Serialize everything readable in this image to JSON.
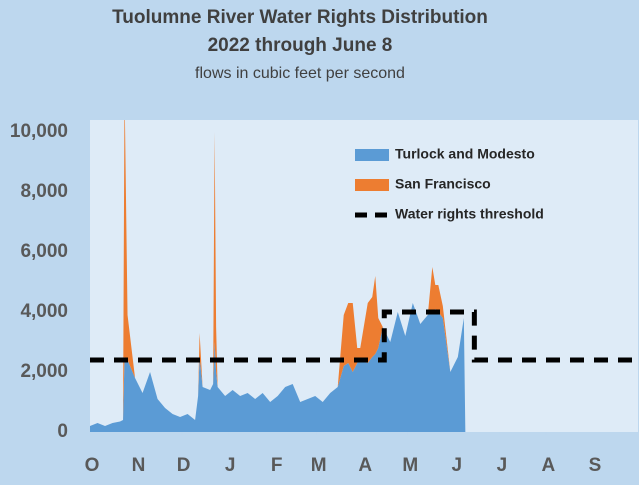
{
  "chart_data": {
    "type": "area",
    "title": [
      "Tuolumne River Water Rights Distribution",
      "2022 through June 8"
    ],
    "subtitle": "flows in cubic feet per second",
    "x": [
      0,
      5,
      10,
      15,
      20,
      22,
      23,
      25,
      30,
      35,
      40,
      45,
      50,
      55,
      60,
      65,
      70,
      72,
      73,
      75,
      80,
      82,
      83,
      84,
      85,
      90,
      95,
      100,
      105,
      110,
      115,
      120,
      125,
      130,
      135,
      140,
      145,
      150,
      155,
      160,
      165,
      169,
      172,
      175,
      178,
      180,
      185,
      188,
      190,
      192,
      195,
      200,
      205,
      210,
      215,
      220,
      225,
      228,
      230,
      232,
      235,
      240,
      245,
      249,
      250
    ],
    "series": [
      {
        "name": "Turlock and Modesto",
        "color": "#5b9bd5",
        "stacked": true,
        "values": [
          200,
          300,
          200,
          300,
          350,
          400,
          2500,
          2400,
          1800,
          1300,
          2000,
          1100,
          800,
          600,
          500,
          600,
          400,
          1200,
          2500,
          1500,
          1400,
          1600,
          3000,
          2000,
          1500,
          1200,
          1400,
          1200,
          1300,
          1100,
          1300,
          1000,
          1200,
          1500,
          1600,
          1000,
          1100,
          1200,
          1000,
          1300,
          1500,
          2200,
          2300,
          2000,
          2300,
          2400,
          2300,
          2500,
          2600,
          2800,
          3500,
          3000,
          4000,
          3200,
          4300,
          3600,
          3900,
          4000,
          4100,
          4000,
          3800,
          2000,
          2500,
          3800,
          0
        ]
      },
      {
        "name": "San Francisco",
        "color": "#ed7d31",
        "stacked": true,
        "values": [
          0,
          0,
          0,
          0,
          0,
          0,
          9000,
          1500,
          0,
          0,
          0,
          0,
          0,
          0,
          0,
          0,
          0,
          0,
          800,
          0,
          0,
          0,
          7000,
          1500,
          0,
          0,
          0,
          0,
          0,
          0,
          0,
          0,
          0,
          0,
          0,
          0,
          0,
          0,
          0,
          0,
          0,
          1700,
          2000,
          2300,
          500,
          400,
          2000,
          2000,
          2600,
          1000,
          0,
          0,
          0,
          0,
          0,
          0,
          0,
          1500,
          800,
          900,
          400,
          0,
          0,
          0,
          0
        ]
      },
      {
        "name": "Water rights threshold",
        "color": "#000000",
        "line": "dashed",
        "x": [
          0,
          196,
          196,
          256,
          256,
          365
        ],
        "values": [
          2400,
          2400,
          4000,
          4000,
          2400,
          2400
        ]
      }
    ],
    "xlim": [
      0,
      365
    ],
    "xticks": [
      {
        "value": 0,
        "label": "O"
      },
      {
        "value": 31,
        "label": "N"
      },
      {
        "value": 61,
        "label": "D"
      },
      {
        "value": 92,
        "label": "J"
      },
      {
        "value": 123,
        "label": "F"
      },
      {
        "value": 151,
        "label": "M"
      },
      {
        "value": 182,
        "label": "A"
      },
      {
        "value": 212,
        "label": "M"
      },
      {
        "value": 243,
        "label": "J"
      },
      {
        "value": 273,
        "label": "J"
      },
      {
        "value": 304,
        "label": "A"
      },
      {
        "value": 335,
        "label": "S"
      }
    ],
    "ylim": [
      0,
      10400
    ],
    "yticks": [
      0,
      {
        "value": 2000,
        "label": "2,000"
      },
      {
        "value": 4000,
        "label": "4,000"
      },
      {
        "value": 6000,
        "label": "6,000"
      },
      {
        "value": 8000,
        "label": "8,000"
      },
      {
        "value": 10000,
        "label": "10,000"
      }
    ],
    "legend": "upper right"
  }
}
